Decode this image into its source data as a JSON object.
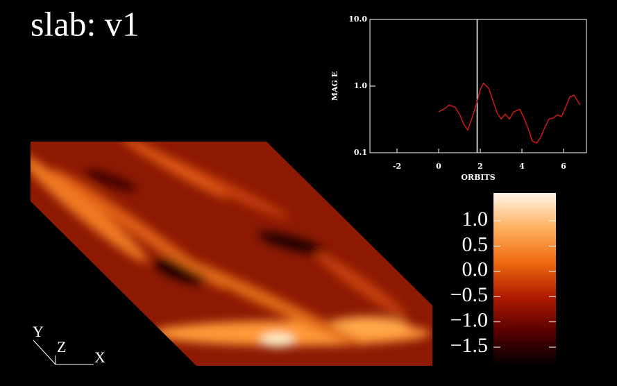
{
  "title": "slab: v1",
  "axes_labels": [
    "Y",
    "Z",
    "X"
  ],
  "chart_data": [
    {
      "type": "line",
      "xlabel": "ORBITS",
      "ylabel": "MAG E",
      "ylog": true,
      "xlim": [
        -3.3,
        7.1
      ],
      "xticks": [
        -2,
        0,
        2,
        4,
        6
      ],
      "ylim": [
        0.1,
        10
      ],
      "yticks": [
        0.1,
        {
          "value": 1,
          "label": "1.0"
        },
        {
          "value": 10,
          "label": "10.0"
        }
      ],
      "vline": 1.85,
      "series": [
        {
          "color": "#d01818",
          "x": [
            0,
            0.3,
            0.5,
            0.8,
            1.0,
            1.2,
            1.4,
            1.6,
            1.8,
            2.0,
            2.15,
            2.4,
            2.6,
            2.8,
            3.0,
            3.2,
            3.4,
            3.6,
            3.9,
            4.1,
            4.3,
            4.5,
            4.7,
            4.9,
            5.1,
            5.3,
            5.5,
            5.7,
            5.9,
            6.1,
            6.3,
            6.5,
            6.8
          ],
          "values": [
            0.41,
            0.46,
            0.52,
            0.48,
            0.38,
            0.27,
            0.22,
            0.33,
            0.52,
            0.88,
            1.1,
            0.93,
            0.62,
            0.4,
            0.32,
            0.38,
            0.32,
            0.41,
            0.45,
            0.33,
            0.23,
            0.15,
            0.14,
            0.17,
            0.24,
            0.32,
            0.33,
            0.37,
            0.35,
            0.48,
            0.69,
            0.73,
            0.52
          ]
        }
      ]
    },
    {
      "type": "colorbar",
      "ylim": [
        -1.87,
        1.55
      ],
      "yticks": [
        {
          "value": 1,
          "label": "1.0"
        },
        0.5,
        {
          "value": 0,
          "label": "0.0"
        },
        {
          "value": -0.5,
          "label": "−0.5"
        },
        {
          "value": -1,
          "label": "−1.0"
        },
        {
          "value": -1.5,
          "label": "−1.5"
        }
      ],
      "colors": [
        "#000000",
        "#5a0000",
        "#b01c00",
        "#ee6a10",
        "#ffb060",
        "#fff4e8"
      ]
    }
  ]
}
